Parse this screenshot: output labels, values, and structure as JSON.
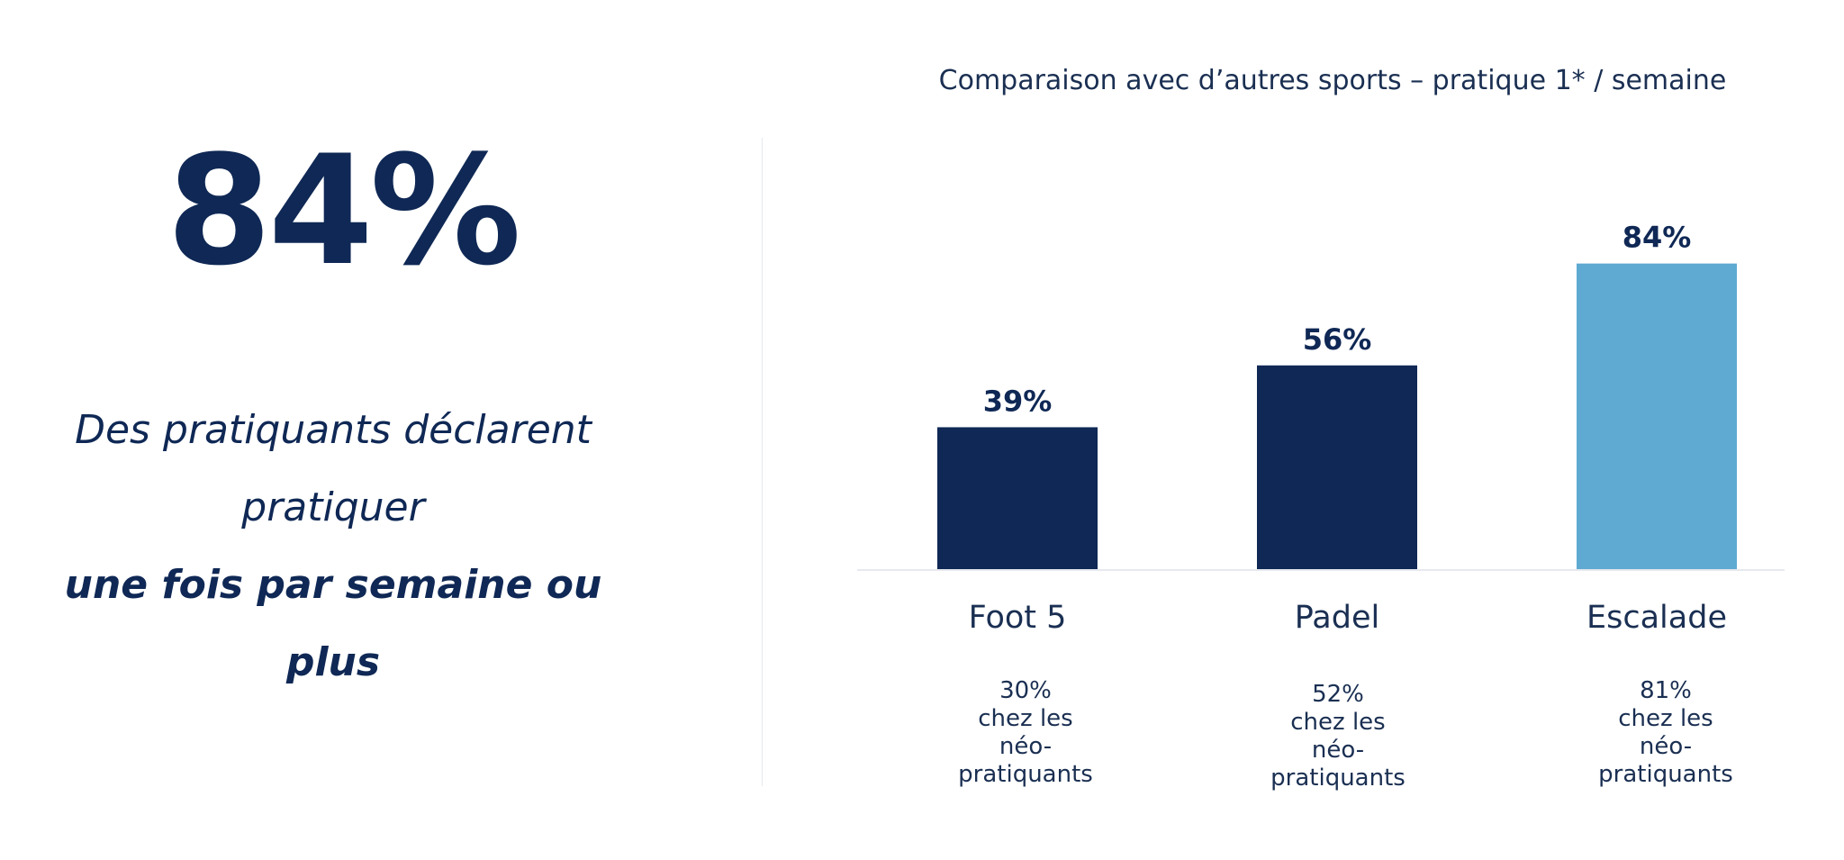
{
  "headline": {
    "stat": "84%",
    "line1": "Des pratiquants déclarent",
    "line2": "pratiquer",
    "line3": "une fois par semaine ou",
    "line4": "plus"
  },
  "chart_data": {
    "type": "bar",
    "title": "Comparaison avec d’autres sports – pratique 1* / semaine",
    "categories": [
      "Foot 5",
      "Padel",
      "Escalade"
    ],
    "values": [
      39,
      56,
      84
    ],
    "value_labels": [
      "39%",
      "56%",
      "84%"
    ],
    "ylim": [
      0,
      100
    ],
    "bar_colors": [
      "#0f2855",
      "#0f2855",
      "#5eaad3"
    ],
    "grid": false,
    "notes": [
      {
        "value": "30%",
        "l1": "chez les",
        "l2": "néo-",
        "l3": "pratiquants"
      },
      {
        "value": "52%",
        "l1": "chez les",
        "l2": "néo-",
        "l3": "pratiquants"
      },
      {
        "value": "81%",
        "l1": "chez les",
        "l2": "néo-",
        "l3": "pratiquants"
      }
    ]
  },
  "colors": {
    "navy": "#0f2855",
    "light_blue": "#5eaad3",
    "divider": "#e6e9ee"
  }
}
